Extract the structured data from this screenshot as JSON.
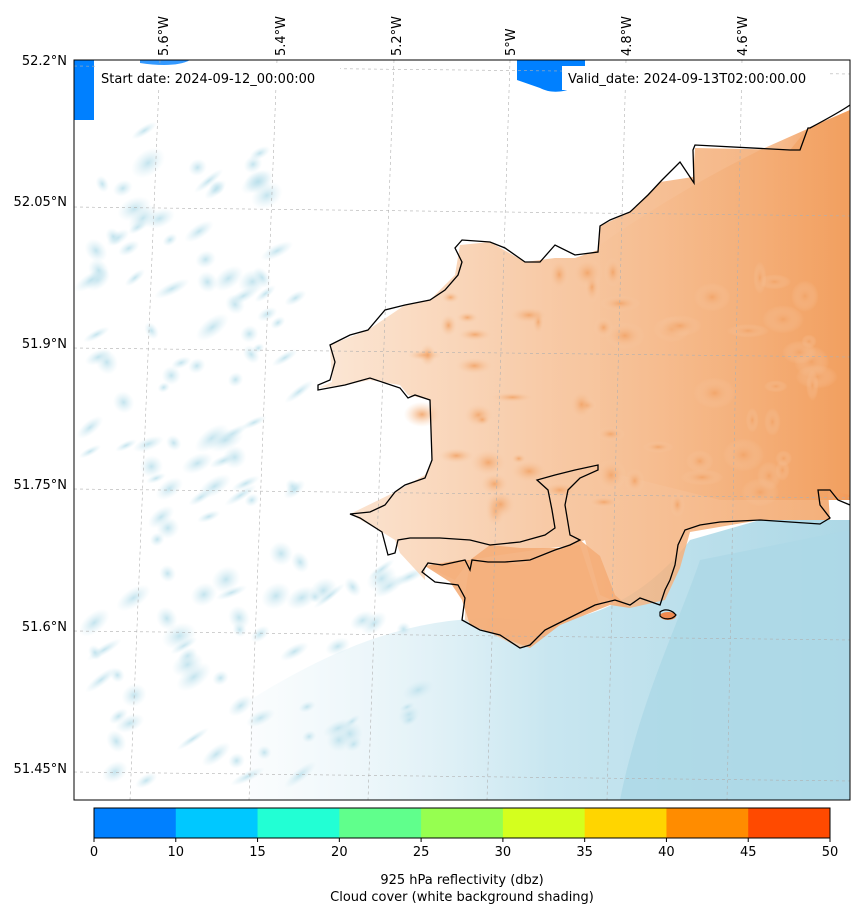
{
  "map": {
    "start_date": "Start date: 2024-09-12_00:00:00",
    "valid_date": "Valid_date: 2024-09-13T02:00:00.00",
    "lon_ticks": [
      "5.6°W",
      "5.4°W",
      "5.2°W",
      "5°W",
      "4.8°W",
      "4.6°W"
    ],
    "lat_ticks": [
      "52.2°N",
      "52.05°N",
      "51.9°N",
      "51.75°N",
      "51.6°N",
      "51.45°N"
    ],
    "land_fill_color": "#f4a060",
    "sea_cloud_color": "#add8e6",
    "coastline_color": "#000000",
    "gridlines": true
  },
  "colorbar": {
    "title_line1": "925 hPa reflectivity (dbz)",
    "title_line2": "Cloud cover (white background shading)",
    "ticks": [
      "0",
      "10",
      "15",
      "20",
      "25",
      "30",
      "35",
      "40",
      "45",
      "50"
    ],
    "colors": [
      "#0080ff",
      "#00c8ff",
      "#22ffd4",
      "#60ff8c",
      "#96ff50",
      "#d4ff1e",
      "#ffd500",
      "#ff8c00",
      "#ff4a00"
    ]
  }
}
